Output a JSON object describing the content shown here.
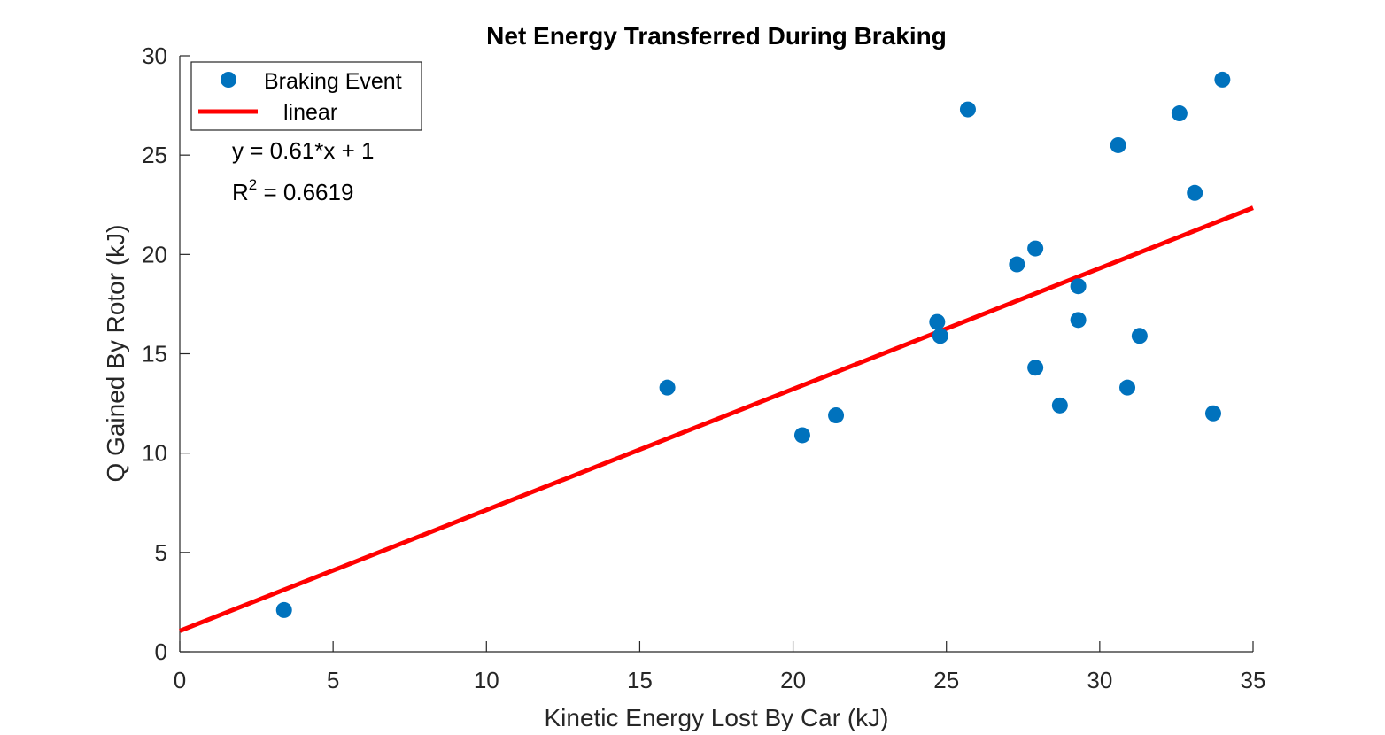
{
  "chart_data": {
    "type": "scatter",
    "title": "Net Energy Transferred During Braking",
    "xlabel": "Kinetic Energy Lost By Car (kJ)",
    "ylabel": "Q Gained By Rotor (kJ)",
    "xlim": [
      0,
      35
    ],
    "ylim": [
      0,
      30
    ],
    "xticks": [
      0,
      5,
      10,
      15,
      20,
      25,
      30,
      35
    ],
    "yticks": [
      0,
      5,
      10,
      15,
      20,
      25,
      30
    ],
    "grid": false,
    "legend_position": "top-left",
    "series": [
      {
        "name": "Braking Event",
        "type": "scatter",
        "color": "#0072BD",
        "points": [
          {
            "x": 3.4,
            "y": 2.1
          },
          {
            "x": 15.9,
            "y": 13.3
          },
          {
            "x": 20.3,
            "y": 10.9
          },
          {
            "x": 21.4,
            "y": 11.9
          },
          {
            "x": 24.7,
            "y": 16.6
          },
          {
            "x": 24.8,
            "y": 15.9
          },
          {
            "x": 25.7,
            "y": 27.3
          },
          {
            "x": 27.3,
            "y": 19.5
          },
          {
            "x": 27.9,
            "y": 20.3
          },
          {
            "x": 27.9,
            "y": 14.3
          },
          {
            "x": 28.7,
            "y": 12.4
          },
          {
            "x": 29.3,
            "y": 18.4
          },
          {
            "x": 29.3,
            "y": 16.7
          },
          {
            "x": 30.6,
            "y": 25.5
          },
          {
            "x": 30.9,
            "y": 13.3
          },
          {
            "x": 31.3,
            "y": 15.9
          },
          {
            "x": 32.6,
            "y": 27.1
          },
          {
            "x": 33.1,
            "y": 23.1
          },
          {
            "x": 33.7,
            "y": 12.0
          },
          {
            "x": 34.0,
            "y": 28.8
          }
        ]
      },
      {
        "name": "linear",
        "type": "line",
        "color": "#FF0000",
        "points": [
          {
            "x": 0,
            "y": 1.05
          },
          {
            "x": 35,
            "y": 22.35
          }
        ]
      }
    ],
    "annotations": {
      "equation": "y = 0.61*x + 1",
      "r2_prefix": "R",
      "r2_sup": "2",
      "r2_value": " = 0.6619"
    }
  }
}
